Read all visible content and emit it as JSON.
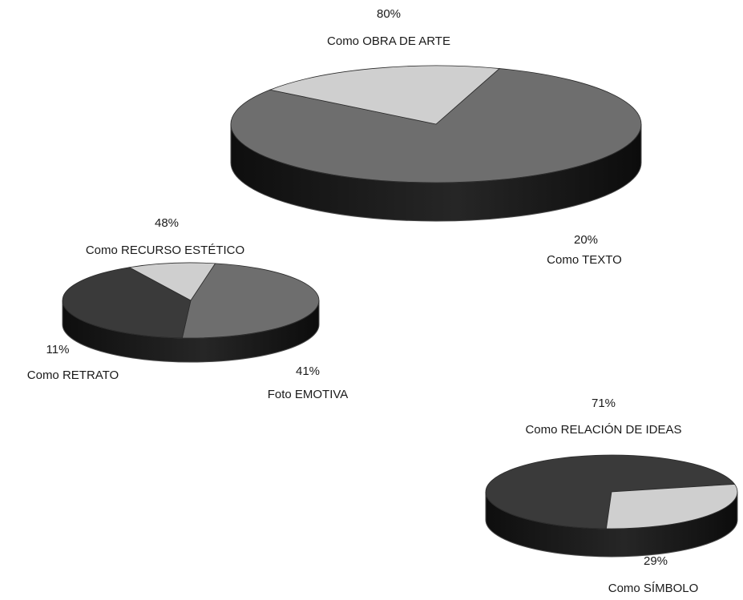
{
  "colors": {
    "dark": "#3a3a3a",
    "medium": "#6e6e6e",
    "light": "#cfcfcf",
    "side_dark": "#161616",
    "side_edge": "#4a4a4a",
    "label": "#1a1a1a",
    "background": "#ffffff"
  },
  "chart_data": [
    {
      "type": "pie",
      "slices": [
        {
          "label": "Como OBRA DE ARTE",
          "value": 80,
          "value_label": "80%",
          "color": "medium"
        },
        {
          "label": "Como TEXTO",
          "value": 20,
          "value_label": "20%",
          "color": "light"
        }
      ]
    },
    {
      "type": "pie",
      "slices": [
        {
          "label": "Como RECURSO ESTÉTICO",
          "value": 48,
          "value_label": "48%",
          "color": "medium"
        },
        {
          "label": "Foto EMOTIVA",
          "value": 41,
          "value_label": "41%",
          "color": "dark"
        },
        {
          "label": "Como RETRATO",
          "value": 11,
          "value_label": "11%",
          "color": "light"
        }
      ]
    },
    {
      "type": "pie",
      "slices": [
        {
          "label": "Como RELACIÓN DE IDEAS",
          "value": 71,
          "value_label": "71%",
          "color": "dark"
        },
        {
          "label": "Como SÍMBOLO",
          "value": 29,
          "value_label": "29%",
          "color": "light"
        }
      ]
    }
  ]
}
